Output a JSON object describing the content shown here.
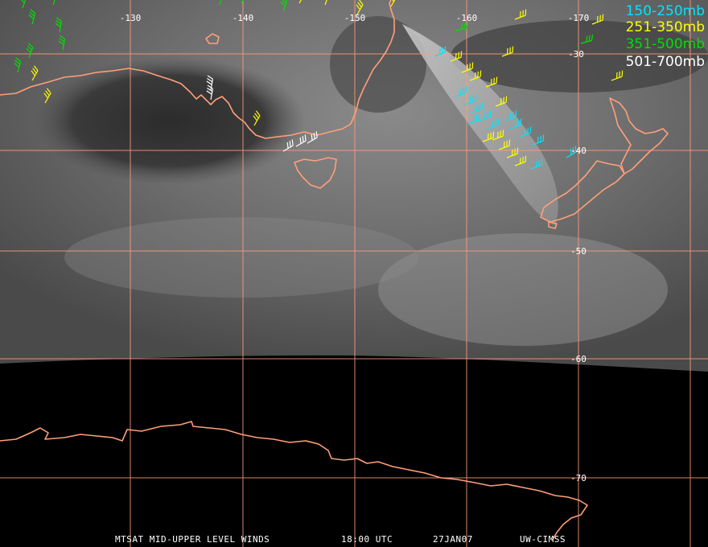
{
  "colors": {
    "coastline": "#ff9f7a",
    "grid": "#ff9f7a",
    "high": "#00e5ff",
    "upper": "#ffff00",
    "mid": "#00e000",
    "low": "#ffffff"
  },
  "grid": {
    "longitudes": [
      "-130",
      "-140",
      "-150",
      "-160",
      "-170"
    ],
    "latitudes": [
      "-30",
      "-40",
      "-50",
      "-60",
      "-70"
    ]
  },
  "legend": [
    {
      "label": "150-250mb",
      "color": "#00e5ff"
    },
    {
      "label": "251-350mb",
      "color": "#ffff00"
    },
    {
      "label": "351-500mb",
      "color": "#00e000"
    },
    {
      "label": "501-700mb",
      "color": "#ffffff"
    }
  ],
  "footer": {
    "product": "MTSAT MID-UPPER LEVEL WINDS",
    "time": "18:00 UTC",
    "date": "27JAN07",
    "source": "UW-CIMSS"
  }
}
